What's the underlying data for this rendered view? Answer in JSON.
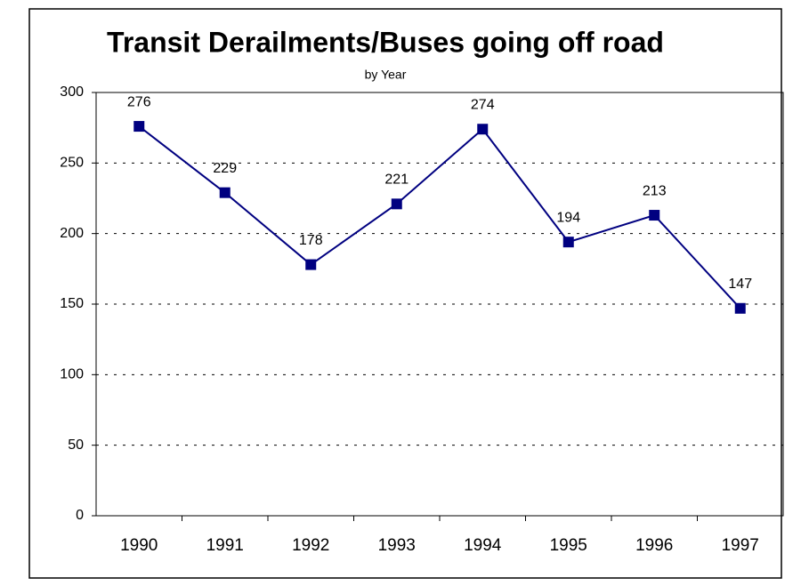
{
  "chart_data": {
    "type": "line",
    "title": "Transit Derailments/Buses going off road",
    "subtitle": "by Year",
    "categories": [
      "1990",
      "1991",
      "1992",
      "1993",
      "1994",
      "1995",
      "1996",
      "1997"
    ],
    "values": [
      276,
      229,
      178,
      221,
      274,
      194,
      213,
      147
    ],
    "color": "#000080",
    "ylim": [
      0,
      300
    ],
    "yticks": [
      0,
      50,
      100,
      150,
      200,
      250,
      300
    ],
    "grid": true
  }
}
